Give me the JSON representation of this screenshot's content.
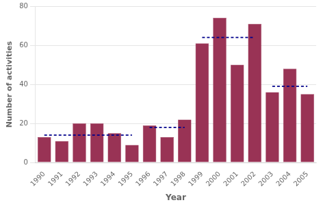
{
  "chart_data": {
    "type": "bar",
    "categories": [
      "1990",
      "1991",
      "1992",
      "1993",
      "1994",
      "1995",
      "1996",
      "1997",
      "1998",
      "1999",
      "2000",
      "2001",
      "2002",
      "2003",
      "2004",
      "2005"
    ],
    "xlabel": "Year",
    "ylabel": "Number of activities",
    "ylim": [
      0,
      80
    ],
    "yticks": [
      0,
      20,
      40,
      60,
      80
    ],
    "grid": true,
    "series": [
      {
        "type": "bar",
        "color": "#993355",
        "values": [
          13,
          11,
          20,
          20,
          15,
          9,
          19,
          13,
          22,
          61,
          74,
          50,
          71,
          36,
          48,
          35
        ]
      },
      {
        "type": "line",
        "line_style": "dashed",
        "color": "#00008B",
        "values": [
          14,
          14,
          14,
          14,
          14,
          14,
          null,
          null,
          null,
          null,
          null,
          null,
          null,
          null,
          null,
          null
        ]
      },
      {
        "type": "line",
        "line_style": "dashed",
        "color": "#00008B",
        "values": [
          null,
          null,
          null,
          null,
          null,
          null,
          18,
          18,
          18,
          null,
          null,
          null,
          null,
          null,
          null,
          null
        ]
      },
      {
        "type": "line",
        "line_style": "dashed",
        "color": "#00008B",
        "values": [
          null,
          null,
          null,
          null,
          null,
          null,
          null,
          null,
          null,
          64,
          64,
          64,
          64,
          null,
          null,
          null
        ]
      },
      {
        "type": "line",
        "line_style": "dashed",
        "color": "#00008B",
        "values": [
          null,
          null,
          null,
          null,
          null,
          null,
          null,
          null,
          null,
          null,
          null,
          null,
          null,
          39,
          39,
          39
        ]
      }
    ]
  }
}
